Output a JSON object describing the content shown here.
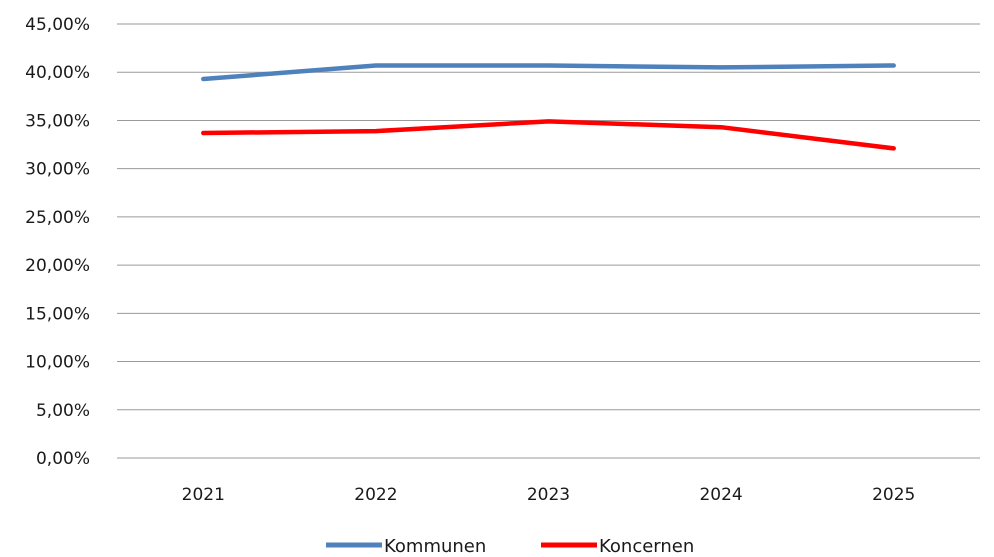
{
  "chart_data": {
    "type": "line",
    "categories": [
      "2021",
      "2022",
      "2023",
      "2024",
      "2025"
    ],
    "series": [
      {
        "name": "Kommunen",
        "color": "#4f81bd",
        "values": [
          39.3,
          40.7,
          40.7,
          40.5,
          40.7
        ]
      },
      {
        "name": "Koncernen",
        "color": "#ff0000",
        "values": [
          33.7,
          33.9,
          34.9,
          34.3,
          32.1
        ]
      }
    ],
    "ylim": [
      0,
      45
    ],
    "yticks": [
      0,
      5,
      10,
      15,
      20,
      25,
      30,
      35,
      40,
      45
    ],
    "ytick_labels": [
      "0,00%",
      "5,00%",
      "10,00%",
      "15,00%",
      "20,00%",
      "25,00%",
      "30,00%",
      "35,00%",
      "40,00%",
      "45,00%"
    ],
    "grid": true,
    "legend": "bottom-center",
    "title": "",
    "xlabel": "",
    "ylabel": ""
  }
}
